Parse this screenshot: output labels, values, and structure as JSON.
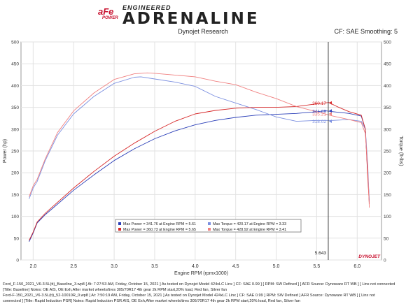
{
  "header": {
    "brand_small": "ENGINEERED",
    "brand_big": "ADRENALINE",
    "logo_text": "aFe",
    "logo_sub": "POWER",
    "subtitle": "Dynojet Research",
    "cf_label": "CF: SAE Smoothing: 5",
    "watermark": "DYNOJET"
  },
  "footer": {
    "run1_line1": "Ford_F-150_2021_V6-3.5L(tt)_Baseline_3.wp8 [ At: 7:27:53 AM, Friday, October 15, 2021 ] As tested on Dynojet Model 424xLC Linx ] CF: SAE 0.99 ] [ RPM: SW Defined ] [ AFR Source: Dynoware RT WB ] [ Linx not connected",
    "run1_line2": "[Title: Baseline] Notes: OE AIS, OE Exh,After market wheels/tires 305/70R17 4th gear 2k RPM start,20% load, Red fan, Silver fan",
    "run2_line1": "Ford-F-150_2021_V6-3.5L(tt)_52-10010R_0.wp8 [ At: 7:50:19 AM, Friday, October 15, 2021 ] As tested on Dynojet Model 424xLC Linx ] CF: SAE 0.99 ] RPM: SW Defined ] AFR Source: Dynoware RT WB ] [ Linx not",
    "run2_line2": "connected ] [Title: Rapid Induction PSR] Notes: Rapid Induction PSR AIS, OE Exh,After market wheels/tires 305/70R17 4th gear 2k RPM start,20% load, Red fan, Silver fan"
  },
  "chart_data": {
    "type": "line",
    "title": "Dynojet Research",
    "xlabel": "Engine RPM (rpmx1000)",
    "ylabel_left": "Power (hp)",
    "ylabel_right": "Torque (ft-lbs)",
    "xlim": [
      1.85,
      6.3
    ],
    "ylim": [
      0,
      500
    ],
    "x_ticks": [
      "2.0",
      "2.5",
      "3.0",
      "3.5",
      "4.0",
      "4.5",
      "5.0",
      "5.5",
      "6.0"
    ],
    "y_ticks": [
      "0",
      "50",
      "100",
      "150",
      "200",
      "250",
      "300",
      "350",
      "400",
      "450",
      "500"
    ],
    "grid": true,
    "cursor": {
      "x": 5.643,
      "label": "5.643"
    },
    "cursor_values": [
      {
        "text": "360.17",
        "value": 360.17,
        "color": "#d62728"
      },
      {
        "text": "341.69",
        "value": 341.69,
        "color": "#2b3fb8"
      },
      {
        "text": "335.21",
        "value": 335.21,
        "color": "#f08080"
      },
      {
        "text": "318.02",
        "value": 318.02,
        "color": "#7b8fe0"
      }
    ],
    "legend": {
      "placement": "bottom-center",
      "entries": [
        {
          "text": "Max Power = 341.76 at Engine RPM = 5.61",
          "color": "#2b3fb8"
        },
        {
          "text": "Max Torque = 420.17 at Engine RPM = 3.33",
          "color": "#7b8fe0"
        },
        {
          "text": "Max Power = 360.73 at Engine RPM = 5.65",
          "color": "#d62728"
        },
        {
          "text": "Max Torque = 428.92 at Engine RPM = 3.41",
          "color": "#f08080"
        }
      ]
    },
    "series": [
      {
        "color": "#2b3fb8",
        "x": [
          1.95,
          2.0,
          2.05,
          2.15,
          2.3,
          2.5,
          2.75,
          3.0,
          3.25,
          3.5,
          3.75,
          4.0,
          4.25,
          4.5,
          4.75,
          5.0,
          5.25,
          5.5,
          5.61,
          5.7,
          5.9,
          6.05,
          6.1,
          6.13,
          6.15
        ],
        "y": [
          42,
          62,
          85,
          104,
          128,
          160,
          195,
          228,
          255,
          278,
          296,
          310,
          320,
          327,
          332,
          334,
          336,
          340,
          342,
          340,
          336,
          330,
          300,
          200,
          135
        ]
      },
      {
        "color": "#7b8fe0",
        "x": [
          1.95,
          2.0,
          2.05,
          2.15,
          2.3,
          2.5,
          2.75,
          3.0,
          3.25,
          3.33,
          3.5,
          3.75,
          4.0,
          4.25,
          4.5,
          4.75,
          5.0,
          5.25,
          5.5,
          5.7,
          5.9,
          6.05,
          6.1,
          6.13,
          6.15
        ],
        "y": [
          140,
          165,
          180,
          228,
          286,
          335,
          375,
          405,
          419,
          420,
          415,
          408,
          398,
          375,
          360,
          345,
          328,
          318,
          320,
          320,
          322,
          318,
          300,
          220,
          130
        ]
      },
      {
        "color": "#d62728",
        "x": [
          1.95,
          2.0,
          2.05,
          2.15,
          2.3,
          2.5,
          2.75,
          3.0,
          3.25,
          3.5,
          3.75,
          4.0,
          4.25,
          4.5,
          4.75,
          5.0,
          5.25,
          5.5,
          5.65,
          5.75,
          5.9,
          6.05,
          6.1,
          6.13,
          6.15
        ],
        "y": [
          45,
          64,
          87,
          107,
          132,
          165,
          203,
          238,
          268,
          295,
          318,
          335,
          343,
          348,
          350,
          350,
          352,
          358,
          361,
          352,
          340,
          332,
          300,
          190,
          128
        ]
      },
      {
        "color": "#f08080",
        "x": [
          1.95,
          2.0,
          2.05,
          2.15,
          2.3,
          2.5,
          2.75,
          3.0,
          3.25,
          3.41,
          3.5,
          3.75,
          4.0,
          4.25,
          4.5,
          4.75,
          5.0,
          5.25,
          5.5,
          5.7,
          5.9,
          6.05,
          6.1,
          6.13,
          6.15
        ],
        "y": [
          145,
          170,
          185,
          232,
          292,
          342,
          383,
          414,
          427,
          429,
          428,
          424,
          420,
          410,
          402,
          385,
          370,
          352,
          340,
          330,
          322,
          315,
          290,
          210,
          120
        ]
      }
    ]
  }
}
